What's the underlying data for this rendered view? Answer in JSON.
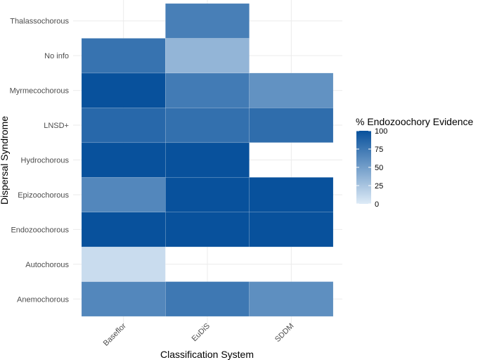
{
  "chart_data": {
    "type": "heatmap",
    "title": "",
    "xlabel": "Classification System",
    "ylabel": "Dispersal Syndrome",
    "x_categories": [
      "Baseflor",
      "EuDiS",
      "SDDM"
    ],
    "y_categories": [
      "Anemochorous",
      "Autochorous",
      "Endozoochorous",
      "Epizoochorous",
      "Hydrochorous",
      "LNSD+",
      "Myrmecochorous",
      "No info",
      "Thalassochorous"
    ],
    "cells": [
      {
        "x": "Baseflor",
        "y": "Anemochorous",
        "value": 65
      },
      {
        "x": "EuDiS",
        "y": "Anemochorous",
        "value": 75
      },
      {
        "x": "SDDM",
        "y": "Anemochorous",
        "value": 60
      },
      {
        "x": "Baseflor",
        "y": "Autochorous",
        "value": 10
      },
      {
        "x": "Baseflor",
        "y": "Endozoochorous",
        "value": 100
      },
      {
        "x": "EuDiS",
        "y": "Endozoochorous",
        "value": 100
      },
      {
        "x": "SDDM",
        "y": "Endozoochorous",
        "value": 100
      },
      {
        "x": "Baseflor",
        "y": "Epizoochorous",
        "value": 65
      },
      {
        "x": "EuDiS",
        "y": "Epizoochorous",
        "value": 100
      },
      {
        "x": "SDDM",
        "y": "Epizoochorous",
        "value": 100
      },
      {
        "x": "Baseflor",
        "y": "Hydrochorous",
        "value": 100
      },
      {
        "x": "EuDiS",
        "y": "Hydrochorous",
        "value": 100
      },
      {
        "x": "Baseflor",
        "y": "LNSD+",
        "value": 85
      },
      {
        "x": "EuDiS",
        "y": "LNSD+",
        "value": 80
      },
      {
        "x": "SDDM",
        "y": "LNSD+",
        "value": 82
      },
      {
        "x": "Baseflor",
        "y": "Myrmecochorous",
        "value": 100
      },
      {
        "x": "EuDiS",
        "y": "Myrmecochorous",
        "value": 73
      },
      {
        "x": "SDDM",
        "y": "Myrmecochorous",
        "value": 58
      },
      {
        "x": "Baseflor",
        "y": "No info",
        "value": 78
      },
      {
        "x": "EuDiS",
        "y": "No info",
        "value": 35
      },
      {
        "x": "EuDiS",
        "y": "Thalassochorous",
        "value": 70
      }
    ],
    "legend": {
      "title": "% Endozoochory Evidence",
      "placement": "right",
      "breaks": [
        0,
        25,
        50,
        75,
        100
      ],
      "range": [
        0,
        100
      ],
      "color_low": "#deebf7",
      "color_high": "#08519c"
    },
    "grid": true
  }
}
